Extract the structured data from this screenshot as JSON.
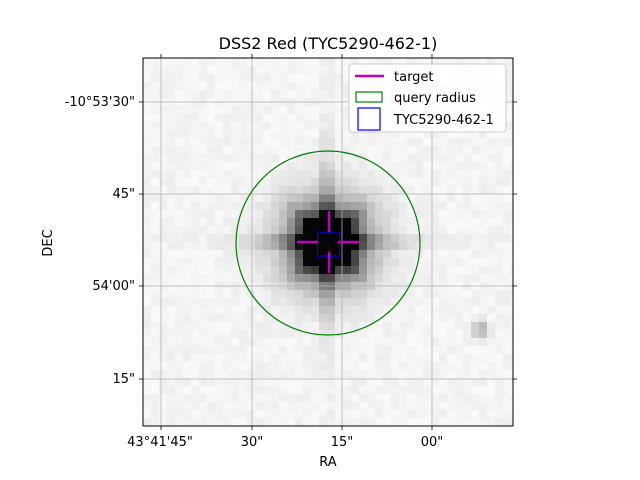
{
  "chart_data": {
    "type": "image",
    "title": "DSS2 Red (TYC5290-462-1)",
    "xlabel": "RA",
    "ylabel": "DEC",
    "x_ticks": [
      "43°41'45\"",
      "30\"",
      "15\"",
      "00\""
    ],
    "y_ticks": [
      "-10°53'30\"",
      "45\"",
      "54'00\"",
      "15\""
    ],
    "grid": true,
    "legend_placement": "upper-right",
    "legend": [
      {
        "label": "target",
        "style": "line",
        "color": "#bf00bf"
      },
      {
        "label": "query radius",
        "style": "circle",
        "color": "#008000"
      },
      {
        "label": "TYC5290-462-1",
        "style": "square",
        "color": "#0000ff"
      }
    ],
    "colormap": "gray_r",
    "target_marker_color": "#bf00bf",
    "query_radius_color": "#008000",
    "source_box_color": "#0000ff",
    "secondary_source_present": true
  }
}
